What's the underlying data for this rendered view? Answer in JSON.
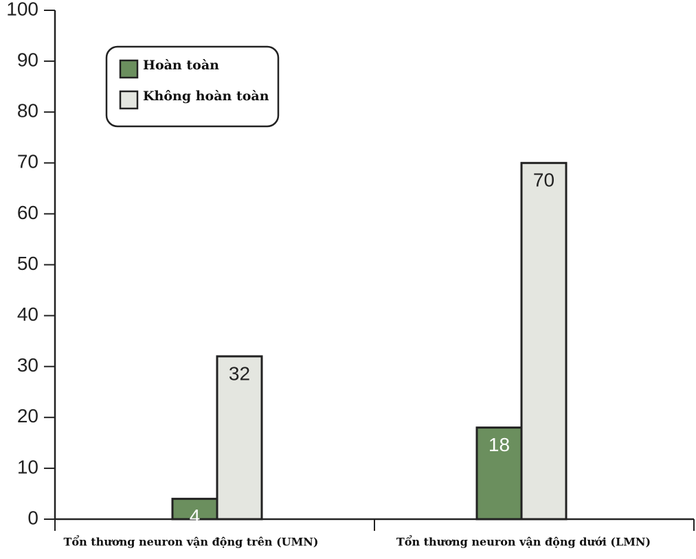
{
  "chart_data": {
    "type": "bar",
    "categories": [
      "Tổn thương neuron vận động trên (UMN)",
      "Tổn thương neuron vận động dưới (LMN)"
    ],
    "series": [
      {
        "name": "Hoàn toàn",
        "color": "#6b8f5e",
        "values": [
          4,
          18
        ]
      },
      {
        "name": "Không hoàn toàn",
        "color": "#e4e6e0",
        "values": [
          32,
          70
        ]
      }
    ],
    "ylim": [
      0,
      100
    ],
    "yticks": [
      0,
      10,
      20,
      30,
      40,
      50,
      60,
      70,
      80,
      90,
      100
    ],
    "legend": "upper left"
  }
}
